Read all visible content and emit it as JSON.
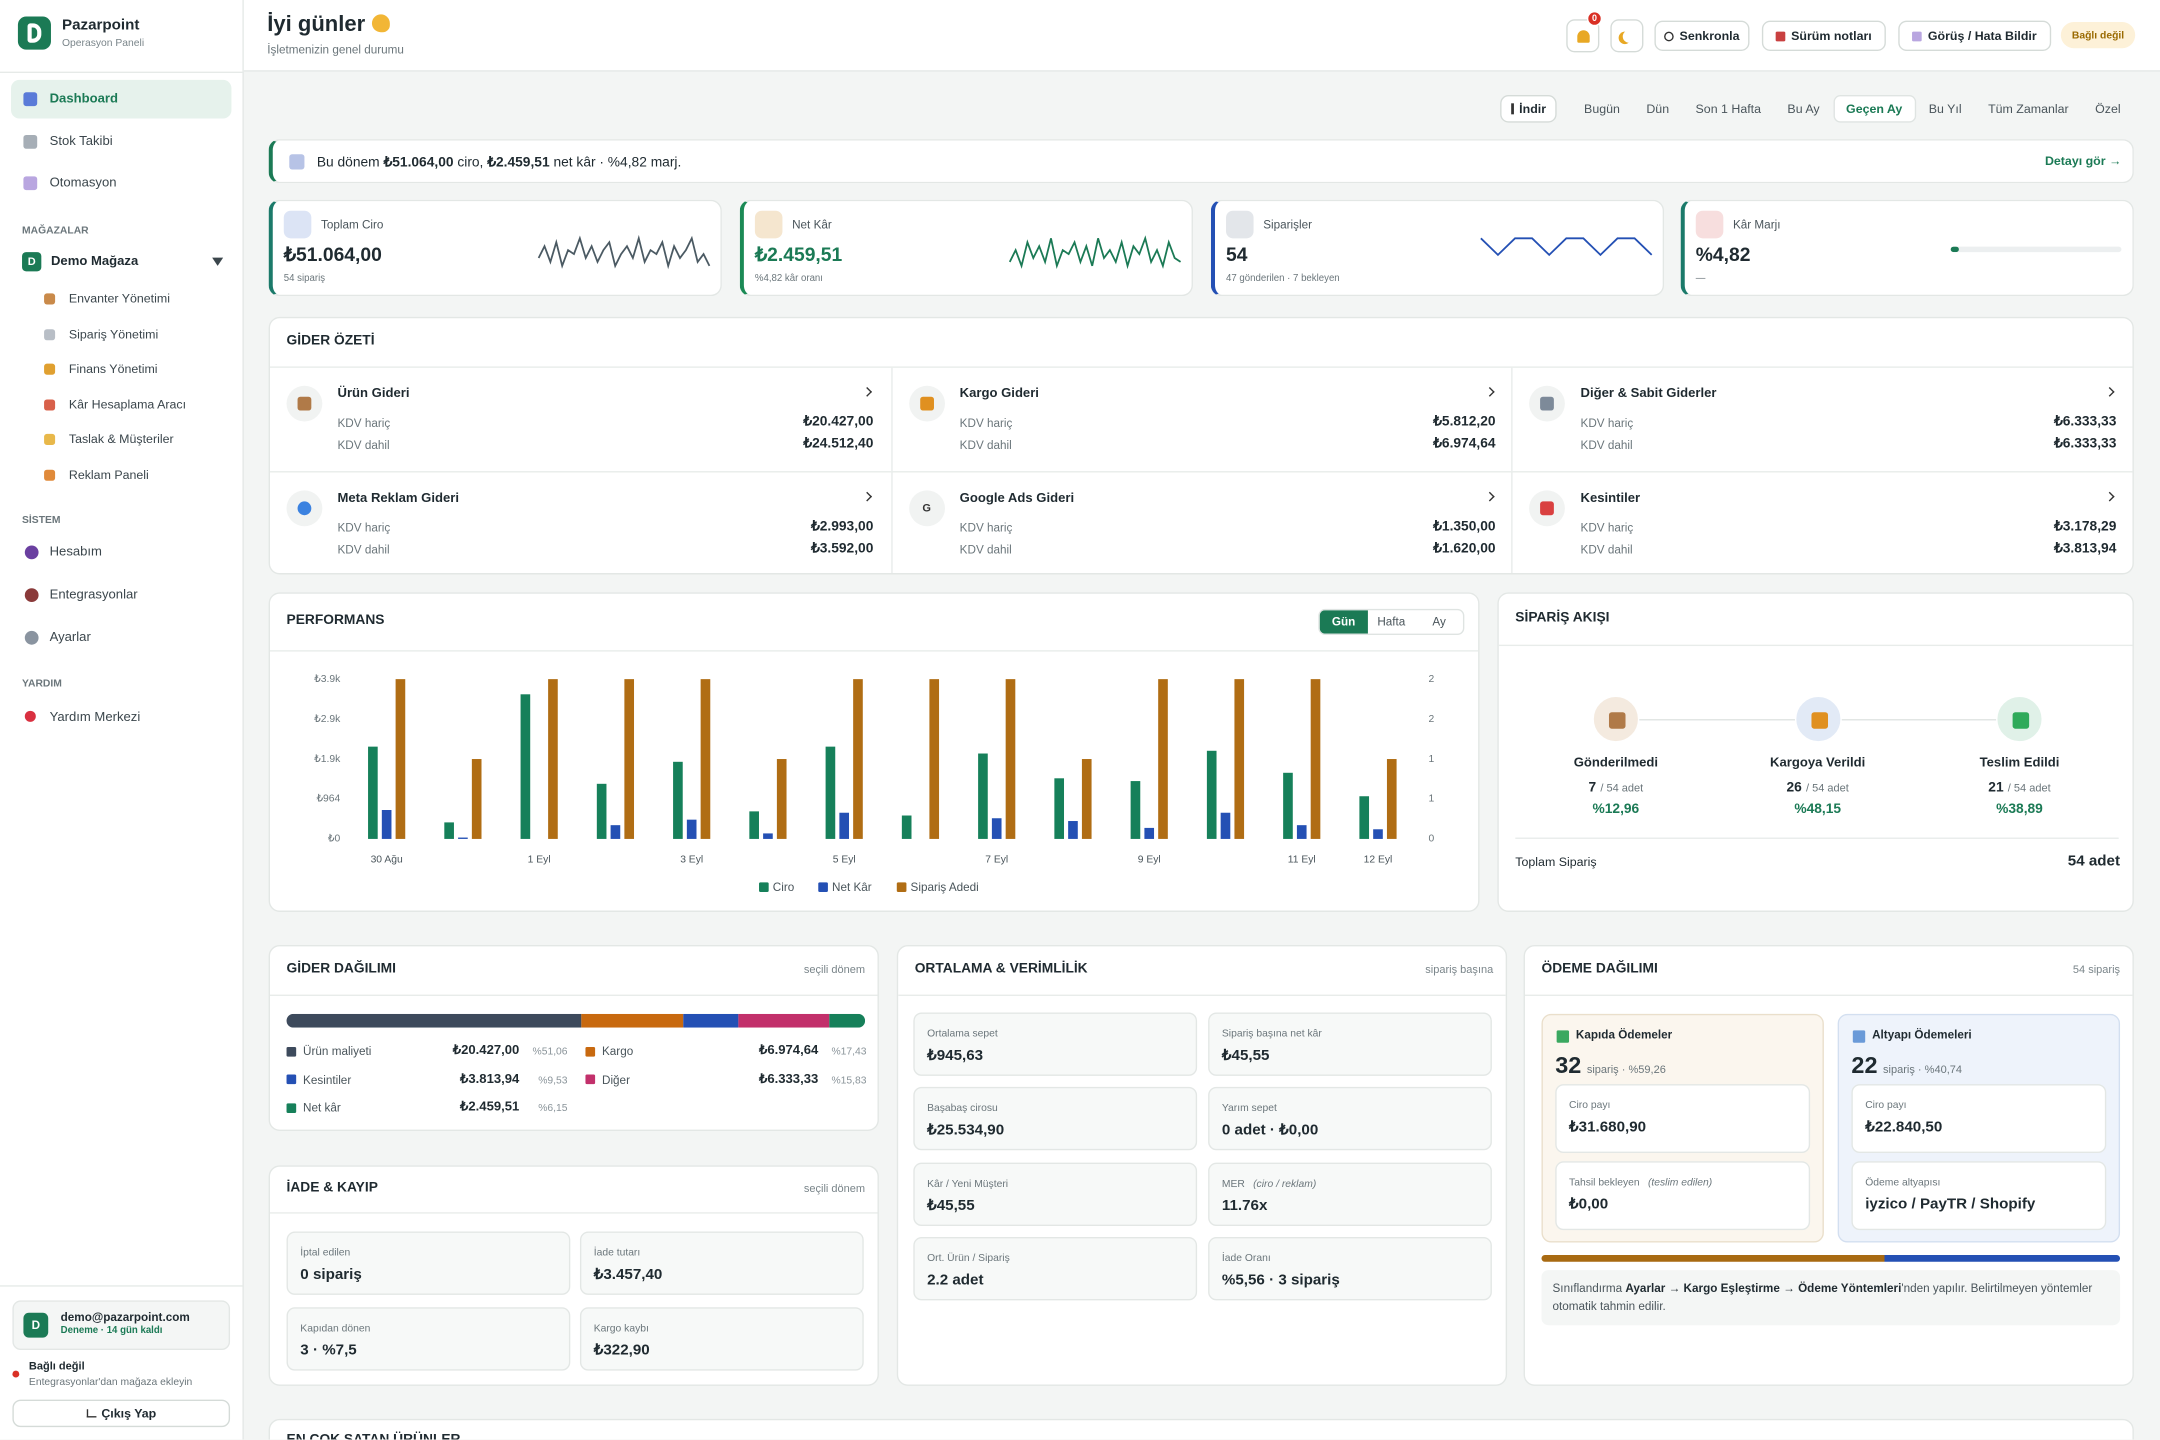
{
  "sidebar": {
    "brand": "Pazarpoint",
    "brand_sub": "Operasyon Paneli",
    "nav": [
      {
        "label": "Dashboard",
        "active": true
      },
      {
        "label": "Stok Takibi"
      },
      {
        "label": "Otomasyon"
      }
    ],
    "stores_heading": "MAĞAZALAR",
    "store": {
      "initial": "D",
      "name": "Demo Mağaza",
      "items": [
        "Envanter Yönetimi",
        "Sipariş Yönetimi",
        "Finans Yönetimi",
        "Kâr Hesaplama Aracı",
        "Taslak & Müşteriler",
        "Reklam Paneli"
      ]
    },
    "system_heading": "SİSTEM",
    "system": [
      "Hesabım",
      "Entegrasyonlar",
      "Ayarlar"
    ],
    "help_heading": "YARDIM",
    "help": [
      "Yardım Merkezi"
    ],
    "user": {
      "initial": "D",
      "email": "demo@pazarpoint.com",
      "plan": "Deneme · 14 gün kaldı"
    },
    "status": {
      "label": "Bağlı değil",
      "hint": "Entegrasyonlar'dan mağaza ekleyin"
    },
    "logout": "Çıkış Yap"
  },
  "header": {
    "greeting": "İyi günler",
    "subtitle": "İşletmenizin genel durumu",
    "notifications": 0,
    "buttons": [
      "Senkronla",
      "Sürüm notları",
      "Görüş / Hata Bildir"
    ],
    "status": "Bağlı değil"
  },
  "filters": {
    "download": "İndir",
    "periods": [
      {
        "label": "Bugün"
      },
      {
        "label": "Dün"
      },
      {
        "label": "Son 1 Hafta"
      },
      {
        "label": "Bu Ay"
      },
      {
        "label": "Geçen Ay",
        "active": true
      },
      {
        "label": "Bu Yıl"
      },
      {
        "label": "Tüm Zamanlar"
      },
      {
        "label": "Özel"
      }
    ]
  },
  "banner": {
    "parts": [
      {
        "text": "Bu dönem "
      },
      {
        "text": "₺51.064,00",
        "bold": true
      },
      {
        "text": " ciro, "
      },
      {
        "text": "₺2.459,51",
        "bold": true
      },
      {
        "text": " net kâr · %4,82 marj."
      }
    ],
    "link": "Detayı gör →"
  },
  "kpis": [
    {
      "label": "Toplam Ciro",
      "value": "₺51.064,00",
      "note": "54 sipariş",
      "color": "#1b7a6a",
      "value_color": "#1f2a30",
      "line_color": "#4b5a63",
      "spark": [
        4,
        7,
        3,
        8,
        2,
        6,
        5,
        9,
        4,
        7,
        3,
        6,
        8,
        2,
        5,
        7,
        4,
        9,
        3,
        6,
        5,
        8,
        2,
        7,
        4,
        6,
        9,
        3,
        5,
        2
      ]
    },
    {
      "label": "Net Kâr",
      "value": "₺2.459,51",
      "note": "%4,82 kâr oranı",
      "color": "#1b8a55",
      "value_color": "#1b7a55",
      "line_color": "#1b7a55",
      "spark": [
        3,
        6,
        2,
        8,
        4,
        7,
        3,
        9,
        2,
        6,
        5,
        8,
        3,
        7,
        2,
        9,
        4,
        6,
        3,
        8,
        2,
        7,
        5,
        9,
        3,
        6,
        2,
        8,
        4,
        3
      ]
    },
    {
      "label": "Siparişler",
      "value": 54,
      "note": "47 gönderilen · 7 bekleyen",
      "color": "#2450b4",
      "value_color": "#1f2a30",
      "line_color": "#2450b4",
      "spark": [
        2,
        1,
        2,
        2,
        1,
        2,
        2,
        1,
        2,
        2,
        1
      ]
    },
    {
      "label": "Kâr Marjı",
      "value": "%4,82",
      "note": "—",
      "color": "#1b7a6a",
      "value_color": "#1f2a30",
      "progress": 4.82
    }
  ],
  "expenses": {
    "title": "GİDER ÖZETİ",
    "excl_label": "KDV hariç",
    "incl_label": "KDV dahil",
    "items": [
      {
        "name": "Ürün Gideri",
        "excl": "₺20.427,00",
        "incl": "₺24.512,40"
      },
      {
        "name": "Kargo Gideri",
        "excl": "₺5.812,20",
        "incl": "₺6.974,64"
      },
      {
        "name": "Diğer & Sabit Giderler",
        "excl": "₺6.333,33",
        "incl": "₺6.333,33"
      },
      {
        "name": "Meta Reklam Gideri",
        "excl": "₺2.993,00",
        "incl": "₺3.592,00"
      },
      {
        "name": "Google Ads Gideri",
        "excl": "₺1.350,00",
        "incl": "₺1.620,00",
        "badge": "G"
      },
      {
        "name": "Kesintiler",
        "excl": "₺3.178,29",
        "incl": "₺3.813,94"
      }
    ]
  },
  "chart_data": {
    "type": "bar",
    "title": "PERFORMANS",
    "toggles": [
      {
        "label": "Gün",
        "active": true
      },
      {
        "label": "Hafta"
      },
      {
        "label": "Ay"
      }
    ],
    "categories": [
      "30 Ağu",
      null,
      "1 Eyl",
      null,
      "3 Eyl",
      null,
      "5 Eyl",
      null,
      "7 Eyl",
      null,
      "9 Eyl",
      null,
      "11 Eyl",
      "12 Eyl"
    ],
    "series": [
      {
        "name": "Ciro",
        "color": "#16805a",
        "values": [
          2227,
          399,
          3490,
          1330,
          1861,
          665,
          2227,
          565,
          2061,
          1463,
          1396,
          2127,
          1596,
          1030
        ]
      },
      {
        "name": "Net Kâr",
        "color": "#2450b4",
        "values": [
          698,
          33,
          0,
          332,
          465,
          133,
          632,
          0,
          499,
          432,
          266,
          632,
          332,
          233
        ]
      },
      {
        "name": "Sipariş Adedi",
        "color": "#b06d14",
        "axis": "y2",
        "values": [
          2,
          1,
          2,
          2,
          2,
          1,
          2,
          2,
          2,
          1,
          2,
          2,
          2,
          1
        ]
      }
    ],
    "ylim": [
      0,
      3856
    ],
    "yticks": [
      {
        "value": 0,
        "label": "₺0"
      },
      {
        "value": 964,
        "label": "₺964"
      },
      {
        "value": 1928,
        "label": "₺1.9k"
      },
      {
        "value": 2892,
        "label": "₺2.9k"
      },
      {
        "value": 3856,
        "label": "₺3.9k"
      }
    ],
    "y2lim": [
      0,
      2
    ],
    "y2ticks": [
      0,
      {
        "value": 0.5,
        "label": "1"
      },
      1,
      {
        "value": 1.5,
        "label": "2"
      },
      2
    ],
    "grid": false,
    "legend": "bottom"
  },
  "flow": {
    "title": "SİPARİŞ AKIŞI",
    "steps": [
      {
        "label": "Gönderilmedi",
        "count": 7,
        "of": "/ 54 adet",
        "pct": "%12,96",
        "color": "#f4eadf"
      },
      {
        "label": "Kargoya Verildi",
        "count": 26,
        "of": "/ 54 adet",
        "pct": "%48,15",
        "color": "#e2eaf6"
      },
      {
        "label": "Teslim Edildi",
        "count": 21,
        "of": "/ 54 adet",
        "pct": "%38,89",
        "color": "#e0f1e8"
      }
    ],
    "total_label": "Toplam Sipariş",
    "total": "54 adet"
  },
  "distribution": {
    "title": "GİDER DAĞILIMI",
    "subtitle": "seçili dönem",
    "items": [
      {
        "name": "Ürün maliyeti",
        "amount": "₺20.427,00",
        "share": 51.06,
        "share_label": "%51,06",
        "color": "#3d4a5c"
      },
      {
        "name": "Kargo",
        "amount": "₺6.974,64",
        "share": 17.43,
        "share_label": "%17,43",
        "color": "#c8690f"
      },
      {
        "name": "Kesintiler",
        "amount": "₺3.813,94",
        "share": 9.53,
        "share_label": "%9,53",
        "color": "#2450b4"
      },
      {
        "name": "Diğer",
        "amount": "₺6.333,33",
        "share": 15.83,
        "share_label": "%15,83",
        "color": "#c2306b"
      },
      {
        "name": "Net kâr",
        "amount": "₺2.459,51",
        "share": 6.15,
        "share_label": "%6,15",
        "color": "#16805a"
      }
    ]
  },
  "returns": {
    "title": "İADE & KAYIP",
    "subtitle": "seçili dönem",
    "cells": [
      {
        "label": "İptal edilen",
        "value": "0 sipariş"
      },
      {
        "label": "İade tutarı",
        "value": "₺3.457,40"
      },
      {
        "label": "Kapıdan dönen",
        "value": "3 · %7,5"
      },
      {
        "label": "Kargo kaybı",
        "value": "₺322,90"
      }
    ]
  },
  "efficiency": {
    "title": "ORTALAMA & VERİMLİLİK",
    "subtitle": "sipariş başına",
    "cells": [
      {
        "label": "Ortalama sepet",
        "value": "₺945,63"
      },
      {
        "label": "Sipariş başına net kâr",
        "value": "₺45,55"
      },
      {
        "label": "Başabaş cirosu",
        "value": "₺25.534,90"
      },
      {
        "label": "Yarım sepet",
        "value": "0 adet · ₺0,00"
      },
      {
        "label": "Kâr / Yeni Müşteri",
        "value": "₺45,55"
      },
      {
        "label": "MER",
        "note": "(ciro / reklam)",
        "value": "11.76x"
      },
      {
        "label": "Ort. Ürün / Sipariş",
        "value": "2.2 adet"
      },
      {
        "label": "İade Oranı",
        "value": "%5,56 · 3 sipariş"
      }
    ]
  },
  "payments": {
    "title": "ÖDEME DAĞILIMI",
    "subtitle": "54 sipariş",
    "panels": [
      {
        "title": "Kapıda Ödemeler",
        "count": 32,
        "count_note": "sipariş · %59,26",
        "share": 59.26,
        "color": "#a86a12",
        "bg": "#fbf6ee",
        "border": "#eadfcb",
        "cells": [
          {
            "label": "Ciro payı",
            "value": "₺31.680,90"
          },
          {
            "label": "Tahsil bekleyen",
            "note": "(teslim edilen)",
            "value": "₺0,00"
          }
        ]
      },
      {
        "title": "Altyapı Ödemeleri",
        "count": 22,
        "count_note": "sipariş · %40,74",
        "share": 40.74,
        "color": "#2450b4",
        "bg": "#eef3fb",
        "border": "#d3dff0",
        "cells": [
          {
            "label": "Ciro payı",
            "value": "₺22.840,50"
          },
          {
            "label": "Ödeme altyapısı",
            "value": "iyzico / PayTR / Shopify"
          }
        ]
      }
    ],
    "note": [
      {
        "text": "Sınıflandırma "
      },
      {
        "text": "Ayarlar → Kargo Eşleştirme → Ödeme Yöntemleri",
        "bold": true
      },
      {
        "text": "'nden yapılır. Belirtilmeyen yöntemler otomatik tahmin edilir."
      }
    ]
  },
  "bottom": {
    "title": "EN ÇOK SATAN ÜRÜNLER"
  }
}
